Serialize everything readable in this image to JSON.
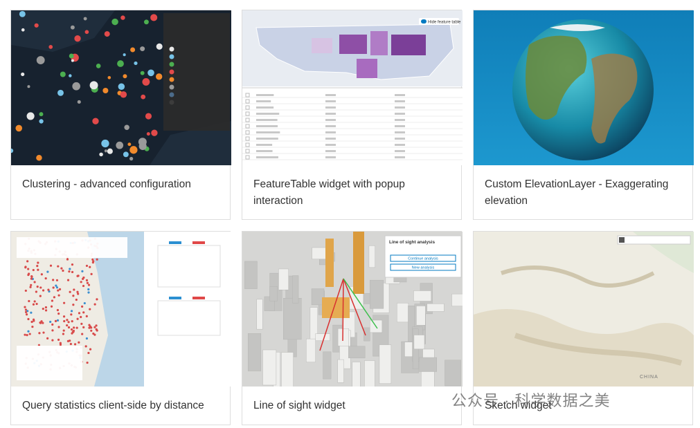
{
  "cards": [
    {
      "title": "Clustering - advanced configuration"
    },
    {
      "title": "FeatureTable widget with popup interaction"
    },
    {
      "title": "Custom ElevationLayer - Exaggerating elevation"
    },
    {
      "title": "Query statistics client-side by distance"
    },
    {
      "title": "Line of sight widget"
    },
    {
      "title": "Sketch widget"
    }
  ],
  "thumbnails": {
    "feature_table_toggle": "Hide feature table",
    "line_of_sight_panel": {
      "title": "Line of sight analysis",
      "buttons": [
        "Continue analysis",
        "New analysis"
      ]
    },
    "sketch_map_label": "CHINA"
  },
  "watermark": "公众号 · 科学数据之美"
}
